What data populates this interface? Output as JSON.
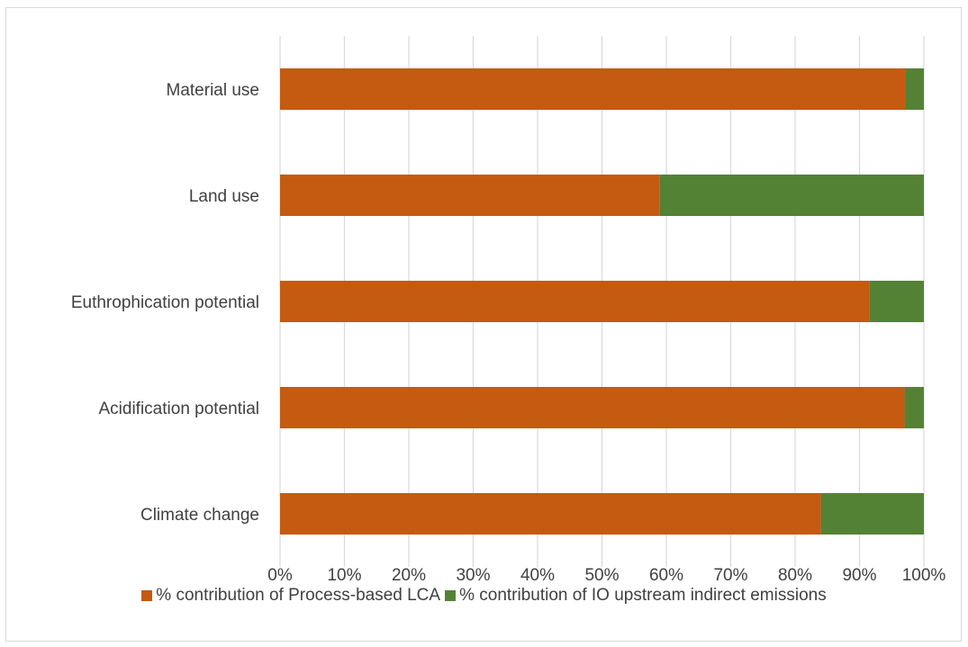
{
  "chart_data": {
    "type": "bar",
    "orientation": "horizontal",
    "stacked": "percent",
    "categories": [
      "Climate change",
      "Acidification potential",
      "Euthrophication potential",
      "Land use",
      "Material use"
    ],
    "series": [
      {
        "name": "% contribution of Process-based LCA",
        "values": [
          84,
          97,
          91.5,
          59,
          97.2
        ],
        "color": "#c55a11"
      },
      {
        "name": "% contribution of IO upstream indirect emissions",
        "values": [
          16,
          3,
          8.5,
          41,
          2.8
        ],
        "color": "#548235"
      }
    ],
    "xlim": [
      0,
      100
    ],
    "x_ticks": [
      "0%",
      "10%",
      "20%",
      "30%",
      "40%",
      "50%",
      "60%",
      "70%",
      "80%",
      "90%",
      "100%"
    ],
    "grid": "vertical",
    "legend_position": "bottom"
  }
}
